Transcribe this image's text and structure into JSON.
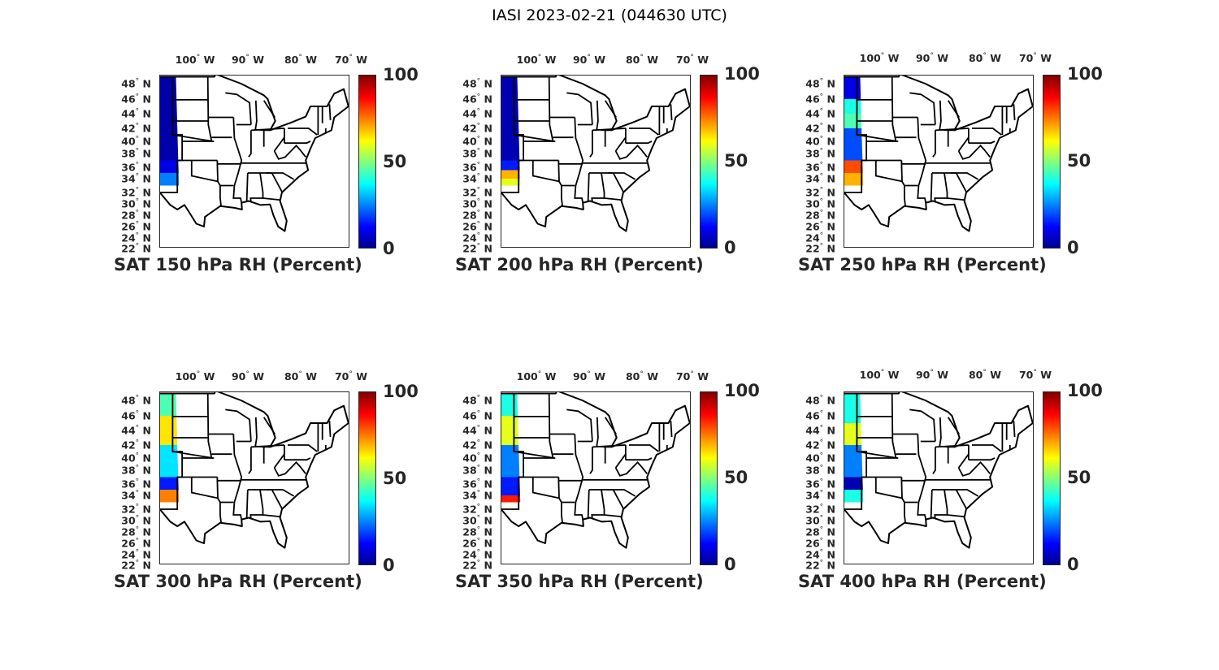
{
  "figure_title": "IASI 2023-02-21 (044630 UTC)",
  "chart_data": {
    "type": "map",
    "title": "IASI 2023-02-21 (044630 UTC)",
    "lon_ticks": [
      "100",
      "90",
      "80",
      "70"
    ],
    "lon_suffix": "W",
    "lat_ticks": [
      "48",
      "46",
      "44",
      "42",
      "40",
      "38",
      "36",
      "34",
      "32",
      "30",
      "28",
      "26",
      "24",
      "22"
    ],
    "lat_suffix": "N",
    "colorbar": {
      "colormap": "jet",
      "range": [
        0,
        100
      ],
      "tick_labels": [
        "100",
        "50",
        "0"
      ]
    },
    "panels": [
      {
        "title": "SAT 150 hPa RH (Percent)",
        "swath": [
          [
            49,
            37,
            4
          ],
          [
            37,
            35,
            10
          ],
          [
            35,
            33,
            25
          ]
        ]
      },
      {
        "title": "SAT 200 hPa RH (Percent)",
        "swath": [
          [
            49,
            37,
            5
          ],
          [
            37,
            35.5,
            15
          ],
          [
            35.5,
            34,
            70
          ],
          [
            34,
            33,
            60
          ]
        ]
      },
      {
        "title": "SAT 250 hPa RH (Percent)",
        "swath": [
          [
            49,
            46,
            10
          ],
          [
            46,
            44,
            40
          ],
          [
            44,
            42,
            45
          ],
          [
            42,
            37,
            20
          ],
          [
            37,
            35,
            80
          ],
          [
            35,
            33,
            70
          ]
        ]
      },
      {
        "title": "SAT 300 hPa RH (Percent)",
        "swath": [
          [
            49,
            46,
            45
          ],
          [
            46,
            42,
            65
          ],
          [
            42,
            37,
            35
          ],
          [
            37,
            35,
            15
          ],
          [
            35,
            33,
            75
          ]
        ]
      },
      {
        "title": "SAT 350 hPa RH (Percent)",
        "swath": [
          [
            49,
            46,
            40
          ],
          [
            46,
            42,
            60
          ],
          [
            42,
            37,
            25
          ],
          [
            37,
            34,
            15
          ],
          [
            34,
            33,
            85
          ]
        ]
      },
      {
        "title": "SAT 400 hPa RH (Percent)",
        "swath": [
          [
            49,
            45,
            40
          ],
          [
            45,
            42,
            60
          ],
          [
            42,
            37,
            25
          ],
          [
            37,
            35,
            5
          ],
          [
            35,
            33,
            40
          ]
        ]
      }
    ]
  }
}
